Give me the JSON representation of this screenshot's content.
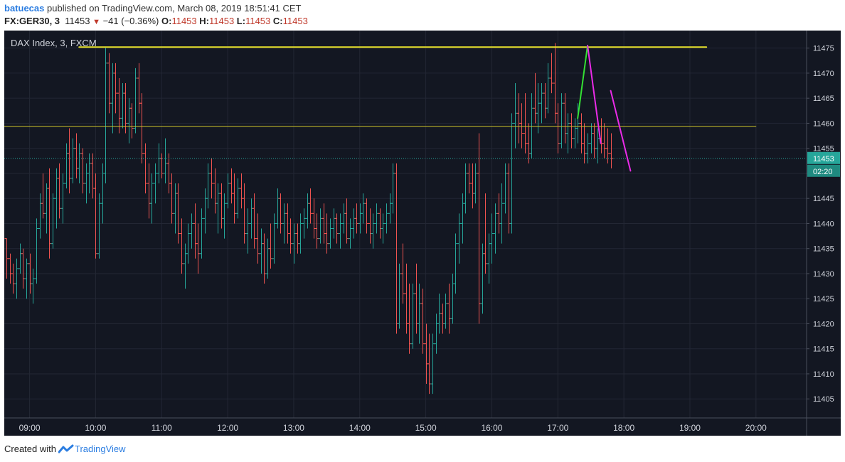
{
  "header": {
    "author": "batuecas",
    "published_text": "published on TradingView.com, March 08, 2019 18:51:41 CET",
    "symbol": "FX:GER30, 3",
    "last": "11453",
    "change": "−41 (−0.36%)",
    "o_label": "O:",
    "o_value": "11453",
    "h_label": "H:",
    "h_value": "11453",
    "l_label": "L:",
    "l_value": "11453",
    "c_label": "C:",
    "c_value": "11453"
  },
  "footer": {
    "created_with": "Created with",
    "brand": "TradingView"
  },
  "colors": {
    "background": "#131722",
    "grid": "#232734",
    "up": "#26a69a",
    "down": "#ef5350",
    "resistance": "#e7e22b",
    "level": "#c9c12a",
    "price_line": "#26a69a",
    "trend_green": "#34e034",
    "trend_magenta": "#ea2be8"
  },
  "chart_data": {
    "type": "ohlc_bar",
    "title": "DAX Index, 3, FXCM",
    "x_ticks": [
      "09:00",
      "10:00",
      "11:00",
      "12:00",
      "13:00",
      "14:00",
      "15:00",
      "16:00",
      "17:00",
      "18:00",
      "19:00",
      "20:00"
    ],
    "y_ticks": [
      11405,
      11410,
      11415,
      11420,
      11425,
      11430,
      11435,
      11440,
      11445,
      11450,
      11455,
      11460,
      11465,
      11470,
      11475
    ],
    "x_range": [
      "08:37",
      "20:46"
    ],
    "y_range": [
      11401.2,
      11478.5
    ],
    "last_price": 11453,
    "countdown": "02:20",
    "grid": true,
    "bar_interval_minutes": 3,
    "lines": [
      {
        "name": "resistance-line",
        "style": "horizontal",
        "from": [
          "09:45",
          11475.2
        ],
        "to": [
          "19:15",
          11475.2
        ],
        "color": "#e7e22b"
      },
      {
        "name": "level-line",
        "style": "horizontal",
        "from": [
          "08:37",
          11459.4
        ],
        "to": [
          "20:00",
          11459.4
        ],
        "color": "#c9c12a"
      },
      {
        "name": "trend-up-green",
        "from": [
          "17:18",
          11461
        ],
        "to": [
          "17:27",
          11475.5
        ],
        "color": "#34e034"
      },
      {
        "name": "trend-down-magenta-1",
        "from": [
          "17:27",
          11475.5
        ],
        "to": [
          "17:39",
          11456
        ],
        "color": "#ea2be8"
      },
      {
        "name": "trend-down-magenta-2",
        "from": [
          "17:48",
          11466.5
        ],
        "to": [
          "18:06",
          11450.5
        ],
        "color": "#ea2be8"
      }
    ],
    "bars": [
      [
        "08:39",
        11437,
        11437,
        11429,
        11433
      ],
      [
        "08:42",
        11433,
        11434,
        11428,
        11430
      ],
      [
        "08:45",
        11430,
        11432,
        11426,
        11428
      ],
      [
        "08:48",
        11428,
        11433,
        11425,
        11431
      ],
      [
        "08:51",
        11431,
        11436,
        11430,
        11434
      ],
      [
        "08:54",
        11434,
        11435,
        11427,
        11429
      ],
      [
        "08:57",
        11429,
        11433,
        11425,
        11432
      ],
      [
        "09:00",
        11432,
        11434,
        11426,
        11428
      ],
      [
        "09:03",
        11428,
        11431,
        11424,
        11429
      ],
      [
        "09:06",
        11429,
        11441,
        11428,
        11439
      ],
      [
        "09:09",
        11439,
        11446,
        11437,
        11444
      ],
      [
        "09:12",
        11444,
        11450,
        11441,
        11442
      ],
      [
        "09:15",
        11442,
        11448,
        11438,
        11447
      ],
      [
        "09:18",
        11447,
        11451,
        11433,
        11436
      ],
      [
        "09:21",
        11436,
        11446,
        11435,
        11445
      ],
      [
        "09:24",
        11445,
        11451,
        11439,
        11449
      ],
      [
        "09:27",
        11449,
        11452,
        11441,
        11443
      ],
      [
        "09:30",
        11443,
        11450,
        11440,
        11448
      ],
      [
        "09:33",
        11448,
        11456,
        11447,
        11454
      ],
      [
        "09:36",
        11454,
        11459,
        11446,
        11449
      ],
      [
        "09:39",
        11449,
        11457,
        11448,
        11455
      ],
      [
        "09:42",
        11455,
        11458,
        11449,
        11451
      ],
      [
        "09:45",
        11451,
        11456,
        11448,
        11454
      ],
      [
        "09:48",
        11454,
        11455,
        11446,
        11448
      ],
      [
        "09:51",
        11448,
        11452,
        11444,
        11450
      ],
      [
        "09:54",
        11450,
        11454,
        11446,
        11452
      ],
      [
        "09:57",
        11452,
        11454,
        11445,
        11447
      ],
      [
        "10:00",
        11447,
        11450,
        11433,
        11434
      ],
      [
        "10:03",
        11434,
        11446,
        11433,
        11444
      ],
      [
        "10:06",
        11444,
        11452,
        11440,
        11450
      ],
      [
        "10:09",
        11450,
        11475,
        11448,
        11472
      ],
      [
        "10:12",
        11472,
        11474,
        11462,
        11464
      ],
      [
        "10:15",
        11464,
        11472,
        11458,
        11470
      ],
      [
        "10:18",
        11470,
        11472,
        11462,
        11466
      ],
      [
        "10:21",
        11466,
        11469,
        11458,
        11461
      ],
      [
        "10:24",
        11461,
        11468,
        11459,
        11466
      ],
      [
        "10:27",
        11466,
        11468,
        11458,
        11460
      ],
      [
        "10:30",
        11460,
        11465,
        11456,
        11463
      ],
      [
        "10:33",
        11463,
        11464,
        11457,
        11459
      ],
      [
        "10:36",
        11459,
        11471,
        11458,
        11469
      ],
      [
        "10:39",
        11469,
        11472,
        11462,
        11464
      ],
      [
        "10:42",
        11464,
        11466,
        11452,
        11454
      ],
      [
        "10:45",
        11454,
        11456,
        11446,
        11448
      ],
      [
        "10:48",
        11448,
        11452,
        11441,
        11444
      ],
      [
        "10:51",
        11444,
        11450,
        11440,
        11448
      ],
      [
        "10:54",
        11448,
        11452,
        11444,
        11450
      ],
      [
        "10:57",
        11450,
        11456,
        11448,
        11453
      ],
      [
        "11:00",
        11453,
        11454,
        11449,
        11450
      ],
      [
        "11:03",
        11450,
        11457,
        11448,
        11452
      ],
      [
        "11:06",
        11452,
        11454,
        11446,
        11448
      ],
      [
        "11:09",
        11448,
        11450,
        11440,
        11442
      ],
      [
        "11:12",
        11442,
        11448,
        11438,
        11446
      ],
      [
        "11:15",
        11446,
        11448,
        11436,
        11438
      ],
      [
        "11:18",
        11438,
        11441,
        11430,
        11432
      ],
      [
        "11:21",
        11432,
        11436,
        11427,
        11434
      ],
      [
        "11:24",
        11434,
        11440,
        11432,
        11438
      ],
      [
        "11:27",
        11438,
        11442,
        11435,
        11440
      ],
      [
        "11:30",
        11440,
        11444,
        11433,
        11436
      ],
      [
        "11:33",
        11436,
        11440,
        11430,
        11434
      ],
      [
        "11:36",
        11434,
        11443,
        11433,
        11441
      ],
      [
        "11:39",
        11441,
        11447,
        11438,
        11445
      ],
      [
        "11:42",
        11445,
        11452,
        11443,
        11450
      ],
      [
        "11:45",
        11450,
        11453,
        11445,
        11448
      ],
      [
        "11:48",
        11448,
        11451,
        11442,
        11444
      ],
      [
        "11:51",
        11444,
        11448,
        11438,
        11446
      ],
      [
        "11:54",
        11446,
        11448,
        11439,
        11441
      ],
      [
        "11:57",
        11441,
        11446,
        11437,
        11444
      ],
      [
        "12:00",
        11444,
        11450,
        11443,
        11448
      ],
      [
        "12:03",
        11448,
        11451,
        11444,
        11446
      ],
      [
        "12:06",
        11446,
        11450,
        11440,
        11442
      ],
      [
        "12:09",
        11442,
        11449,
        11441,
        11447
      ],
      [
        "12:12",
        11447,
        11450,
        11443,
        11445
      ],
      [
        "12:15",
        11445,
        11448,
        11436,
        11438
      ],
      [
        "12:18",
        11438,
        11443,
        11434,
        11440
      ],
      [
        "12:21",
        11440,
        11445,
        11437,
        11443
      ],
      [
        "12:24",
        11443,
        11446,
        11435,
        11437
      ],
      [
        "12:27",
        11437,
        11442,
        11432,
        11434
      ],
      [
        "12:30",
        11434,
        11439,
        11430,
        11436
      ],
      [
        "12:33",
        11436,
        11438,
        11428,
        11430
      ],
      [
        "12:36",
        11430,
        11437,
        11429,
        11435
      ],
      [
        "12:39",
        11435,
        11440,
        11431,
        11433
      ],
      [
        "12:42",
        11433,
        11442,
        11432,
        11440
      ],
      [
        "12:45",
        11440,
        11447,
        11439,
        11445
      ],
      [
        "12:48",
        11445,
        11446,
        11438,
        11440
      ],
      [
        "12:51",
        11440,
        11444,
        11436,
        11442
      ],
      [
        "12:54",
        11442,
        11444,
        11436,
        11438
      ],
      [
        "12:57",
        11438,
        11441,
        11434,
        11436
      ],
      [
        "13:00",
        11436,
        11440,
        11432,
        11438
      ],
      [
        "13:03",
        11438,
        11440,
        11434,
        11436
      ],
      [
        "13:06",
        11436,
        11442,
        11434,
        11440
      ],
      [
        "13:09",
        11440,
        11443,
        11437,
        11441
      ],
      [
        "13:12",
        11441,
        11446,
        11439,
        11444
      ],
      [
        "13:15",
        11444,
        11447,
        11440,
        11442
      ],
      [
        "13:18",
        11442,
        11445,
        11437,
        11439
      ],
      [
        "13:21",
        11439,
        11442,
        11435,
        11437
      ],
      [
        "13:24",
        11437,
        11443,
        11436,
        11441
      ],
      [
        "13:27",
        11441,
        11444,
        11436,
        11438
      ],
      [
        "13:30",
        11438,
        11442,
        11434,
        11436
      ],
      [
        "13:33",
        11436,
        11441,
        11435,
        11439
      ],
      [
        "13:36",
        11439,
        11443,
        11437,
        11441
      ],
      [
        "13:39",
        11441,
        11442,
        11436,
        11438
      ],
      [
        "13:42",
        11438,
        11442,
        11435,
        11440
      ],
      [
        "13:45",
        11440,
        11444,
        11438,
        11442
      ],
      [
        "13:48",
        11442,
        11445,
        11436,
        11437
      ],
      [
        "13:51",
        11437,
        11441,
        11435,
        11439
      ],
      [
        "13:54",
        11439,
        11443,
        11437,
        11441
      ],
      [
        "13:57",
        11441,
        11444,
        11438,
        11440
      ],
      [
        "14:00",
        11440,
        11444,
        11438,
        11442
      ],
      [
        "14:03",
        11442,
        11446,
        11440,
        11444
      ],
      [
        "14:06",
        11444,
        11445,
        11438,
        11440
      ],
      [
        "14:09",
        11440,
        11443,
        11436,
        11438
      ],
      [
        "14:12",
        11438,
        11442,
        11435,
        11440
      ],
      [
        "14:15",
        11440,
        11444,
        11438,
        11442
      ],
      [
        "14:18",
        11442,
        11443,
        11437,
        11439
      ],
      [
        "14:21",
        11439,
        11442,
        11436,
        11440
      ],
      [
        "14:24",
        11440,
        11444,
        11438,
        11442
      ],
      [
        "14:27",
        11442,
        11446,
        11440,
        11444
      ],
      [
        "14:30",
        11444,
        11452,
        11442,
        11450
      ],
      [
        "14:33",
        11450,
        11452,
        11418,
        11420
      ],
      [
        "14:36",
        11420,
        11432,
        11419,
        11430
      ],
      [
        "14:39",
        11430,
        11436,
        11424,
        11426
      ],
      [
        "14:42",
        11426,
        11432,
        11418,
        11420
      ],
      [
        "14:45",
        11420,
        11428,
        11414,
        11416
      ],
      [
        "14:48",
        11416,
        11428,
        11415,
        11426
      ],
      [
        "14:51",
        11426,
        11432,
        11418,
        11420
      ],
      [
        "14:54",
        11420,
        11428,
        11416,
        11424
      ],
      [
        "14:57",
        11424,
        11427,
        11414,
        11416
      ],
      [
        "15:00",
        11416,
        11420,
        11408,
        11412
      ],
      [
        "15:03",
        11412,
        11418,
        11406,
        11408
      ],
      [
        "15:06",
        11408,
        11418,
        11406,
        11416
      ],
      [
        "15:09",
        11416,
        11422,
        11414,
        11420
      ],
      [
        "15:12",
        11420,
        11426,
        11418,
        11422
      ],
      [
        "15:15",
        11422,
        11424,
        11418,
        11420
      ],
      [
        "15:18",
        11420,
        11426,
        11419,
        11424
      ],
      [
        "15:21",
        11424,
        11428,
        11418,
        11421
      ],
      [
        "15:24",
        11421,
        11430,
        11420,
        11428
      ],
      [
        "15:27",
        11428,
        11438,
        11426,
        11436
      ],
      [
        "15:30",
        11436,
        11442,
        11432,
        11440
      ],
      [
        "15:33",
        11440,
        11446,
        11436,
        11444
      ],
      [
        "15:36",
        11444,
        11452,
        11442,
        11450
      ],
      [
        "15:39",
        11450,
        11452,
        11446,
        11448
      ],
      [
        "15:42",
        11448,
        11452,
        11443,
        11446
      ],
      [
        "15:45",
        11446,
        11452,
        11444,
        11450
      ],
      [
        "15:48",
        11450,
        11458,
        11420,
        11424
      ],
      [
        "15:51",
        11424,
        11436,
        11422,
        11434
      ],
      [
        "15:54",
        11434,
        11446,
        11430,
        11432
      ],
      [
        "15:57",
        11432,
        11438,
        11428,
        11436
      ],
      [
        "16:00",
        11436,
        11442,
        11432,
        11438
      ],
      [
        "16:03",
        11438,
        11444,
        11434,
        11442
      ],
      [
        "16:06",
        11442,
        11446,
        11438,
        11440
      ],
      [
        "16:09",
        11440,
        11448,
        11436,
        11444
      ],
      [
        "16:12",
        11444,
        11452,
        11442,
        11450
      ],
      [
        "16:15",
        11450,
        11452,
        11438,
        11440
      ],
      [
        "16:18",
        11440,
        11462,
        11438,
        11460
      ],
      [
        "16:21",
        11460,
        11468,
        11455,
        11462
      ],
      [
        "16:24",
        11462,
        11466,
        11456,
        11460
      ],
      [
        "16:27",
        11460,
        11464,
        11455,
        11458
      ],
      [
        "16:30",
        11458,
        11466,
        11454,
        11456
      ],
      [
        "16:33",
        11456,
        11460,
        11452,
        11454
      ],
      [
        "16:36",
        11454,
        11466,
        11453,
        11463
      ],
      [
        "16:39",
        11463,
        11470,
        11460,
        11462
      ],
      [
        "16:42",
        11462,
        11468,
        11458,
        11464
      ],
      [
        "16:45",
        11464,
        11468,
        11460,
        11466
      ],
      [
        "16:48",
        11466,
        11468,
        11461,
        11463
      ],
      [
        "16:51",
        11463,
        11472,
        11462,
        11469
      ],
      [
        "16:54",
        11469,
        11474,
        11466,
        11468
      ],
      [
        "16:57",
        11468,
        11476,
        11460,
        11462
      ],
      [
        "17:00",
        11462,
        11464,
        11454,
        11456
      ],
      [
        "17:03",
        11456,
        11466,
        11455,
        11464
      ],
      [
        "17:06",
        11464,
        11466,
        11456,
        11458
      ],
      [
        "17:09",
        11458,
        11462,
        11454,
        11460
      ],
      [
        "17:12",
        11460,
        11462,
        11455,
        11457
      ],
      [
        "17:15",
        11457,
        11461,
        11455,
        11459
      ],
      [
        "17:18",
        11459,
        11464,
        11456,
        11460
      ],
      [
        "17:21",
        11460,
        11462,
        11454,
        11456
      ],
      [
        "17:24",
        11456,
        11460,
        11452,
        11454
      ],
      [
        "17:27",
        11454,
        11458,
        11452,
        11456
      ],
      [
        "17:30",
        11456,
        11460,
        11454,
        11458
      ],
      [
        "17:33",
        11458,
        11460,
        11453,
        11455
      ],
      [
        "17:36",
        11455,
        11459,
        11452,
        11457
      ],
      [
        "17:39",
        11457,
        11461,
        11454,
        11456
      ],
      [
        "17:42",
        11456,
        11460,
        11453,
        11455
      ],
      [
        "17:45",
        11455,
        11459,
        11452,
        11454
      ],
      [
        "17:48",
        11454,
        11458,
        11451,
        11453
      ]
    ]
  }
}
